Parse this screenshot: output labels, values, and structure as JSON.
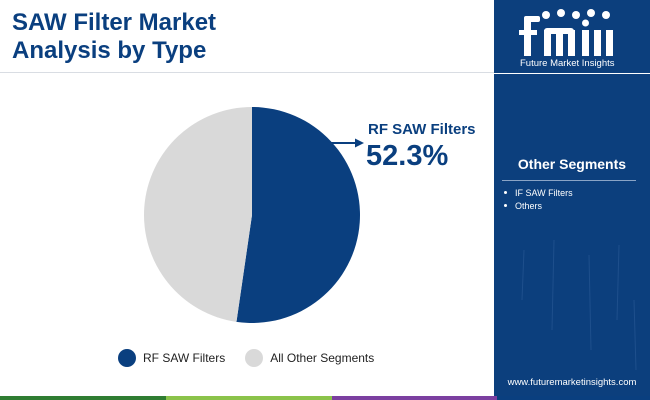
{
  "title_lines": [
    "SAW Filter Market",
    "Analysis by Type"
  ],
  "brand": {
    "logo_letters": "fmi",
    "wordmark": "Future Market Insights",
    "url": "www.futuremarketinsights.com"
  },
  "sidebar": {
    "heading": "Other Segments",
    "items": [
      "IF SAW Filters",
      "Others"
    ]
  },
  "callout": {
    "label": "RF SAW Filters",
    "value": "52.3%"
  },
  "legend": [
    {
      "label": "RF SAW Filters",
      "color": "#0a3f7f"
    },
    {
      "label": "All Other Segments",
      "color": "#d9d9d9"
    }
  ],
  "colors": {
    "brand_blue": "#0a3f7f",
    "sidebar_blue": "#0c3f7d",
    "other_gray": "#d9d9d9",
    "bottom_bar": [
      "#2f7d32",
      "#8bc34a",
      "#7b3fa0",
      "#0a3f7f"
    ]
  },
  "chart_data": {
    "type": "pie",
    "title": "SAW Filter Market Analysis by Type",
    "series": [
      {
        "name": "RF SAW Filters",
        "value": 52.3,
        "color": "#0a3f7f"
      },
      {
        "name": "All Other Segments",
        "value": 47.7,
        "color": "#d9d9d9"
      }
    ],
    "start_angle": "12 o'clock, clockwise",
    "legend_position": "bottom"
  }
}
